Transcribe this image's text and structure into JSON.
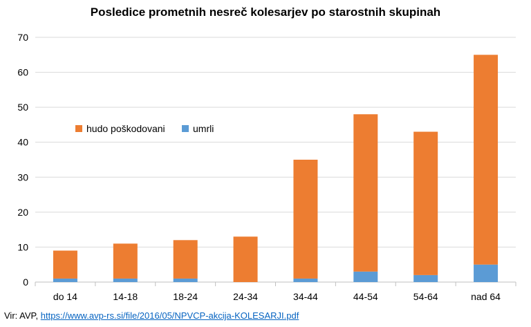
{
  "title": "Posledice prometnih nesreč kolesarjev po starostnih skupinah",
  "source": {
    "prefix": "Vir: AVP, ",
    "link_text": "https://www.avp-rs.si/file/2016/05/NPVCP-akcija-KOLESARJI.pdf"
  },
  "colors": {
    "hudo": "#ed7d31",
    "umrli": "#5b9bd5",
    "grid": "#d9d9d9",
    "axis": "#bfbfbf"
  },
  "chart_data": {
    "type": "bar",
    "stacked": true,
    "title": "Posledice prometnih nesreč kolesarjev po starostnih skupinah",
    "categories": [
      "do 14",
      "14-18",
      "18-24",
      "24-34",
      "34-44",
      "44-54",
      "54-64",
      "nad 64"
    ],
    "series": [
      {
        "name": "umrli",
        "values": [
          1,
          1,
          1,
          0,
          1,
          3,
          2,
          5
        ]
      },
      {
        "name": "hudo poškodovani",
        "values": [
          8,
          10,
          11,
          13,
          34,
          45,
          41,
          60
        ]
      }
    ],
    "ylim": [
      0,
      70
    ],
    "yticks": [
      "0",
      "10",
      "20",
      "30",
      "40",
      "50",
      "60",
      "70"
    ],
    "grid": true,
    "legend": "upper-left"
  }
}
